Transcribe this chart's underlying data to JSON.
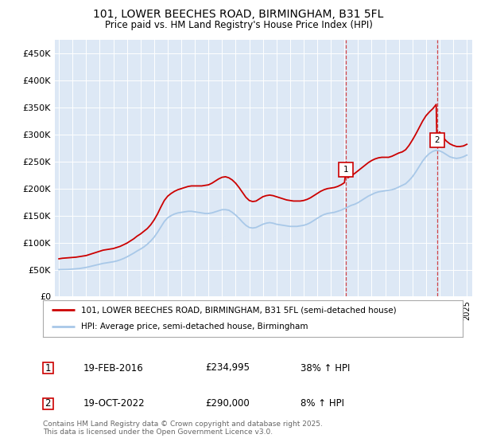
{
  "title": "101, LOWER BEECHES ROAD, BIRMINGHAM, B31 5FL",
  "subtitle": "Price paid vs. HM Land Registry's House Price Index (HPI)",
  "ylim": [
    0,
    475000
  ],
  "xlim_start": 1994.7,
  "xlim_end": 2025.4,
  "background_color": "#ffffff",
  "plot_bg_color": "#dde8f5",
  "grid_color": "#ffffff",
  "red_line_color": "#cc0000",
  "blue_line_color": "#a8c8e8",
  "marker1_date_x": 2016.12,
  "marker1_y": 234995,
  "marker2_date_x": 2022.8,
  "marker2_y": 290000,
  "annotation1": {
    "date": "19-FEB-2016",
    "price": "£234,995",
    "hpi": "38% ↑ HPI"
  },
  "annotation2": {
    "date": "19-OCT-2022",
    "price": "£290,000",
    "hpi": "8% ↑ HPI"
  },
  "legend_line1": "101, LOWER BEECHES ROAD, BIRMINGHAM, B31 5FL (semi-detached house)",
  "legend_line2": "HPI: Average price, semi-detached house, Birmingham",
  "footer": "Contains HM Land Registry data © Crown copyright and database right 2025.\nThis data is licensed under the Open Government Licence v3.0.",
  "red_hpi_data": [
    [
      1995.0,
      70000
    ],
    [
      1995.25,
      71000
    ],
    [
      1995.5,
      71500
    ],
    [
      1995.75,
      72000
    ],
    [
      1996.0,
      72500
    ],
    [
      1996.25,
      73000
    ],
    [
      1996.5,
      74000
    ],
    [
      1996.75,
      75000
    ],
    [
      1997.0,
      76000
    ],
    [
      1997.25,
      78000
    ],
    [
      1997.5,
      80000
    ],
    [
      1997.75,
      82000
    ],
    [
      1998.0,
      84000
    ],
    [
      1998.25,
      86000
    ],
    [
      1998.5,
      87000
    ],
    [
      1998.75,
      88000
    ],
    [
      1999.0,
      89000
    ],
    [
      1999.25,
      91000
    ],
    [
      1999.5,
      93000
    ],
    [
      1999.75,
      96000
    ],
    [
      2000.0,
      99000
    ],
    [
      2000.25,
      103000
    ],
    [
      2000.5,
      107000
    ],
    [
      2000.75,
      112000
    ],
    [
      2001.0,
      116000
    ],
    [
      2001.25,
      121000
    ],
    [
      2001.5,
      126000
    ],
    [
      2001.75,
      133000
    ],
    [
      2002.0,
      142000
    ],
    [
      2002.25,
      153000
    ],
    [
      2002.5,
      166000
    ],
    [
      2002.75,
      178000
    ],
    [
      2003.0,
      186000
    ],
    [
      2003.25,
      191000
    ],
    [
      2003.5,
      195000
    ],
    [
      2003.75,
      198000
    ],
    [
      2004.0,
      200000
    ],
    [
      2004.25,
      202000
    ],
    [
      2004.5,
      204000
    ],
    [
      2004.75,
      205000
    ],
    [
      2005.0,
      205000
    ],
    [
      2005.25,
      205000
    ],
    [
      2005.5,
      205000
    ],
    [
      2005.75,
      206000
    ],
    [
      2006.0,
      207000
    ],
    [
      2006.25,
      210000
    ],
    [
      2006.5,
      214000
    ],
    [
      2006.75,
      218000
    ],
    [
      2007.0,
      221000
    ],
    [
      2007.25,
      222000
    ],
    [
      2007.5,
      220000
    ],
    [
      2007.75,
      216000
    ],
    [
      2008.0,
      210000
    ],
    [
      2008.25,
      202000
    ],
    [
      2008.5,
      193000
    ],
    [
      2008.75,
      184000
    ],
    [
      2009.0,
      178000
    ],
    [
      2009.25,
      176000
    ],
    [
      2009.5,
      177000
    ],
    [
      2009.75,
      181000
    ],
    [
      2010.0,
      185000
    ],
    [
      2010.25,
      187000
    ],
    [
      2010.5,
      188000
    ],
    [
      2010.75,
      187000
    ],
    [
      2011.0,
      185000
    ],
    [
      2011.25,
      183000
    ],
    [
      2011.5,
      181000
    ],
    [
      2011.75,
      179000
    ],
    [
      2012.0,
      178000
    ],
    [
      2012.25,
      177000
    ],
    [
      2012.5,
      177000
    ],
    [
      2012.75,
      177000
    ],
    [
      2013.0,
      178000
    ],
    [
      2013.25,
      180000
    ],
    [
      2013.5,
      183000
    ],
    [
      2013.75,
      187000
    ],
    [
      2014.0,
      191000
    ],
    [
      2014.25,
      195000
    ],
    [
      2014.5,
      198000
    ],
    [
      2014.75,
      200000
    ],
    [
      2015.0,
      201000
    ],
    [
      2015.25,
      202000
    ],
    [
      2015.5,
      204000
    ],
    [
      2015.75,
      207000
    ],
    [
      2016.0,
      211000
    ],
    [
      2016.12,
      234995
    ],
    [
      2016.25,
      220000
    ],
    [
      2016.5,
      224000
    ],
    [
      2016.75,
      228000
    ],
    [
      2017.0,
      233000
    ],
    [
      2017.25,
      238000
    ],
    [
      2017.5,
      243000
    ],
    [
      2017.75,
      248000
    ],
    [
      2018.0,
      252000
    ],
    [
      2018.25,
      255000
    ],
    [
      2018.5,
      257000
    ],
    [
      2018.75,
      258000
    ],
    [
      2019.0,
      258000
    ],
    [
      2019.25,
      258000
    ],
    [
      2019.5,
      260000
    ],
    [
      2019.75,
      263000
    ],
    [
      2020.0,
      266000
    ],
    [
      2020.25,
      268000
    ],
    [
      2020.5,
      272000
    ],
    [
      2020.75,
      280000
    ],
    [
      2021.0,
      290000
    ],
    [
      2021.25,
      301000
    ],
    [
      2021.5,
      313000
    ],
    [
      2021.75,
      325000
    ],
    [
      2022.0,
      335000
    ],
    [
      2022.25,
      342000
    ],
    [
      2022.5,
      348000
    ],
    [
      2022.75,
      356000
    ],
    [
      2022.8,
      290000
    ],
    [
      2023.0,
      305000
    ],
    [
      2023.25,
      295000
    ],
    [
      2023.5,
      288000
    ],
    [
      2023.75,
      283000
    ],
    [
      2024.0,
      280000
    ],
    [
      2024.25,
      278000
    ],
    [
      2024.5,
      278000
    ],
    [
      2024.75,
      279000
    ],
    [
      2025.0,
      282000
    ]
  ],
  "blue_hpi_data": [
    [
      1995.0,
      50000
    ],
    [
      1995.25,
      50200
    ],
    [
      1995.5,
      50300
    ],
    [
      1995.75,
      50500
    ],
    [
      1996.0,
      51000
    ],
    [
      1996.25,
      51500
    ],
    [
      1996.5,
      52000
    ],
    [
      1996.75,
      53000
    ],
    [
      1997.0,
      54000
    ],
    [
      1997.25,
      55500
    ],
    [
      1997.5,
      57000
    ],
    [
      1997.75,
      58500
    ],
    [
      1998.0,
      60000
    ],
    [
      1998.25,
      61500
    ],
    [
      1998.5,
      62500
    ],
    [
      1998.75,
      63500
    ],
    [
      1999.0,
      64500
    ],
    [
      1999.25,
      66000
    ],
    [
      1999.5,
      68000
    ],
    [
      1999.75,
      70500
    ],
    [
      2000.0,
      73500
    ],
    [
      2000.25,
      77000
    ],
    [
      2000.5,
      80500
    ],
    [
      2000.75,
      84500
    ],
    [
      2001.0,
      88000
    ],
    [
      2001.25,
      92000
    ],
    [
      2001.5,
      97000
    ],
    [
      2001.75,
      103000
    ],
    [
      2002.0,
      110000
    ],
    [
      2002.25,
      119000
    ],
    [
      2002.5,
      129000
    ],
    [
      2002.75,
      139000
    ],
    [
      2003.0,
      146000
    ],
    [
      2003.25,
      150000
    ],
    [
      2003.5,
      153000
    ],
    [
      2003.75,
      155000
    ],
    [
      2004.0,
      156000
    ],
    [
      2004.25,
      157000
    ],
    [
      2004.5,
      158000
    ],
    [
      2004.75,
      158000
    ],
    [
      2005.0,
      157000
    ],
    [
      2005.25,
      156000
    ],
    [
      2005.5,
      155000
    ],
    [
      2005.75,
      154000
    ],
    [
      2006.0,
      154000
    ],
    [
      2006.25,
      155000
    ],
    [
      2006.5,
      157000
    ],
    [
      2006.75,
      159000
    ],
    [
      2007.0,
      161000
    ],
    [
      2007.25,
      161000
    ],
    [
      2007.5,
      160000
    ],
    [
      2007.75,
      156000
    ],
    [
      2008.0,
      151000
    ],
    [
      2008.25,
      145000
    ],
    [
      2008.5,
      138000
    ],
    [
      2008.75,
      132000
    ],
    [
      2009.0,
      128000
    ],
    [
      2009.25,
      127000
    ],
    [
      2009.5,
      128000
    ],
    [
      2009.75,
      131000
    ],
    [
      2010.0,
      134000
    ],
    [
      2010.25,
      136000
    ],
    [
      2010.5,
      137000
    ],
    [
      2010.75,
      136000
    ],
    [
      2011.0,
      134000
    ],
    [
      2011.25,
      133000
    ],
    [
      2011.5,
      132000
    ],
    [
      2011.75,
      131000
    ],
    [
      2012.0,
      130000
    ],
    [
      2012.25,
      130000
    ],
    [
      2012.5,
      130000
    ],
    [
      2012.75,
      131000
    ],
    [
      2013.0,
      132000
    ],
    [
      2013.25,
      134000
    ],
    [
      2013.5,
      137000
    ],
    [
      2013.75,
      141000
    ],
    [
      2014.0,
      145000
    ],
    [
      2014.25,
      149000
    ],
    [
      2014.5,
      152000
    ],
    [
      2014.75,
      154000
    ],
    [
      2015.0,
      155000
    ],
    [
      2015.25,
      156000
    ],
    [
      2015.5,
      158000
    ],
    [
      2015.75,
      160000
    ],
    [
      2016.0,
      163000
    ],
    [
      2016.25,
      166000
    ],
    [
      2016.5,
      169000
    ],
    [
      2016.75,
      171000
    ],
    [
      2017.0,
      174000
    ],
    [
      2017.25,
      178000
    ],
    [
      2017.5,
      182000
    ],
    [
      2017.75,
      186000
    ],
    [
      2018.0,
      189000
    ],
    [
      2018.25,
      192000
    ],
    [
      2018.5,
      194000
    ],
    [
      2018.75,
      195000
    ],
    [
      2019.0,
      196000
    ],
    [
      2019.25,
      197000
    ],
    [
      2019.5,
      198000
    ],
    [
      2019.75,
      200000
    ],
    [
      2020.0,
      203000
    ],
    [
      2020.25,
      206000
    ],
    [
      2020.5,
      209000
    ],
    [
      2020.75,
      215000
    ],
    [
      2021.0,
      222000
    ],
    [
      2021.25,
      231000
    ],
    [
      2021.5,
      241000
    ],
    [
      2021.75,
      251000
    ],
    [
      2022.0,
      259000
    ],
    [
      2022.25,
      265000
    ],
    [
      2022.5,
      269000
    ],
    [
      2022.75,
      271000
    ],
    [
      2023.0,
      270000
    ],
    [
      2023.25,
      267000
    ],
    [
      2023.5,
      263000
    ],
    [
      2023.75,
      259000
    ],
    [
      2024.0,
      257000
    ],
    [
      2024.25,
      256000
    ],
    [
      2024.5,
      257000
    ],
    [
      2024.75,
      259000
    ],
    [
      2025.0,
      262000
    ]
  ]
}
